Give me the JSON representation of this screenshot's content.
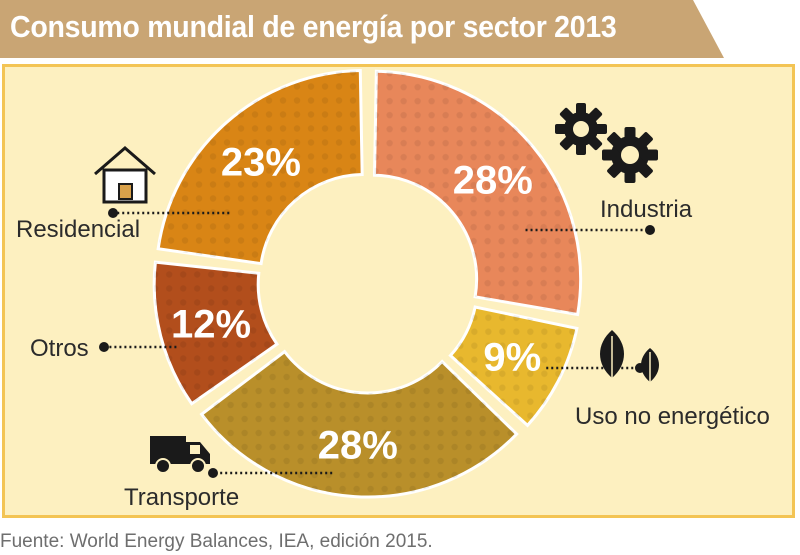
{
  "title": "Consumo mundial de energía por sector 2013",
  "source": "Fuente: World Energy Balances, IEA, edición 2015.",
  "colors": {
    "title_bg": "#c9a574",
    "panel_bg": "#fdf0c0",
    "panel_border": "#f3c454",
    "industria": "#e8875a",
    "uso_no_energetico": "#e8b82e",
    "transporte": "#b98f2a",
    "otros": "#b24e1c",
    "residencial": "#d98515"
  },
  "chart_data": {
    "type": "pie",
    "donut": true,
    "slices": [
      {
        "label": "Industria",
        "value": 28,
        "display": "28%",
        "icon": "gears-icon"
      },
      {
        "label": "Uso no energético",
        "value": 9,
        "display": "9%",
        "icon": "leaves-icon"
      },
      {
        "label": "Transporte",
        "value": 28,
        "display": "28%",
        "icon": "truck-icon"
      },
      {
        "label": "Otros",
        "value": 12,
        "display": "12%",
        "icon": ""
      },
      {
        "label": "Residencial",
        "value": 23,
        "display": "23%",
        "icon": "house-icon"
      }
    ]
  }
}
